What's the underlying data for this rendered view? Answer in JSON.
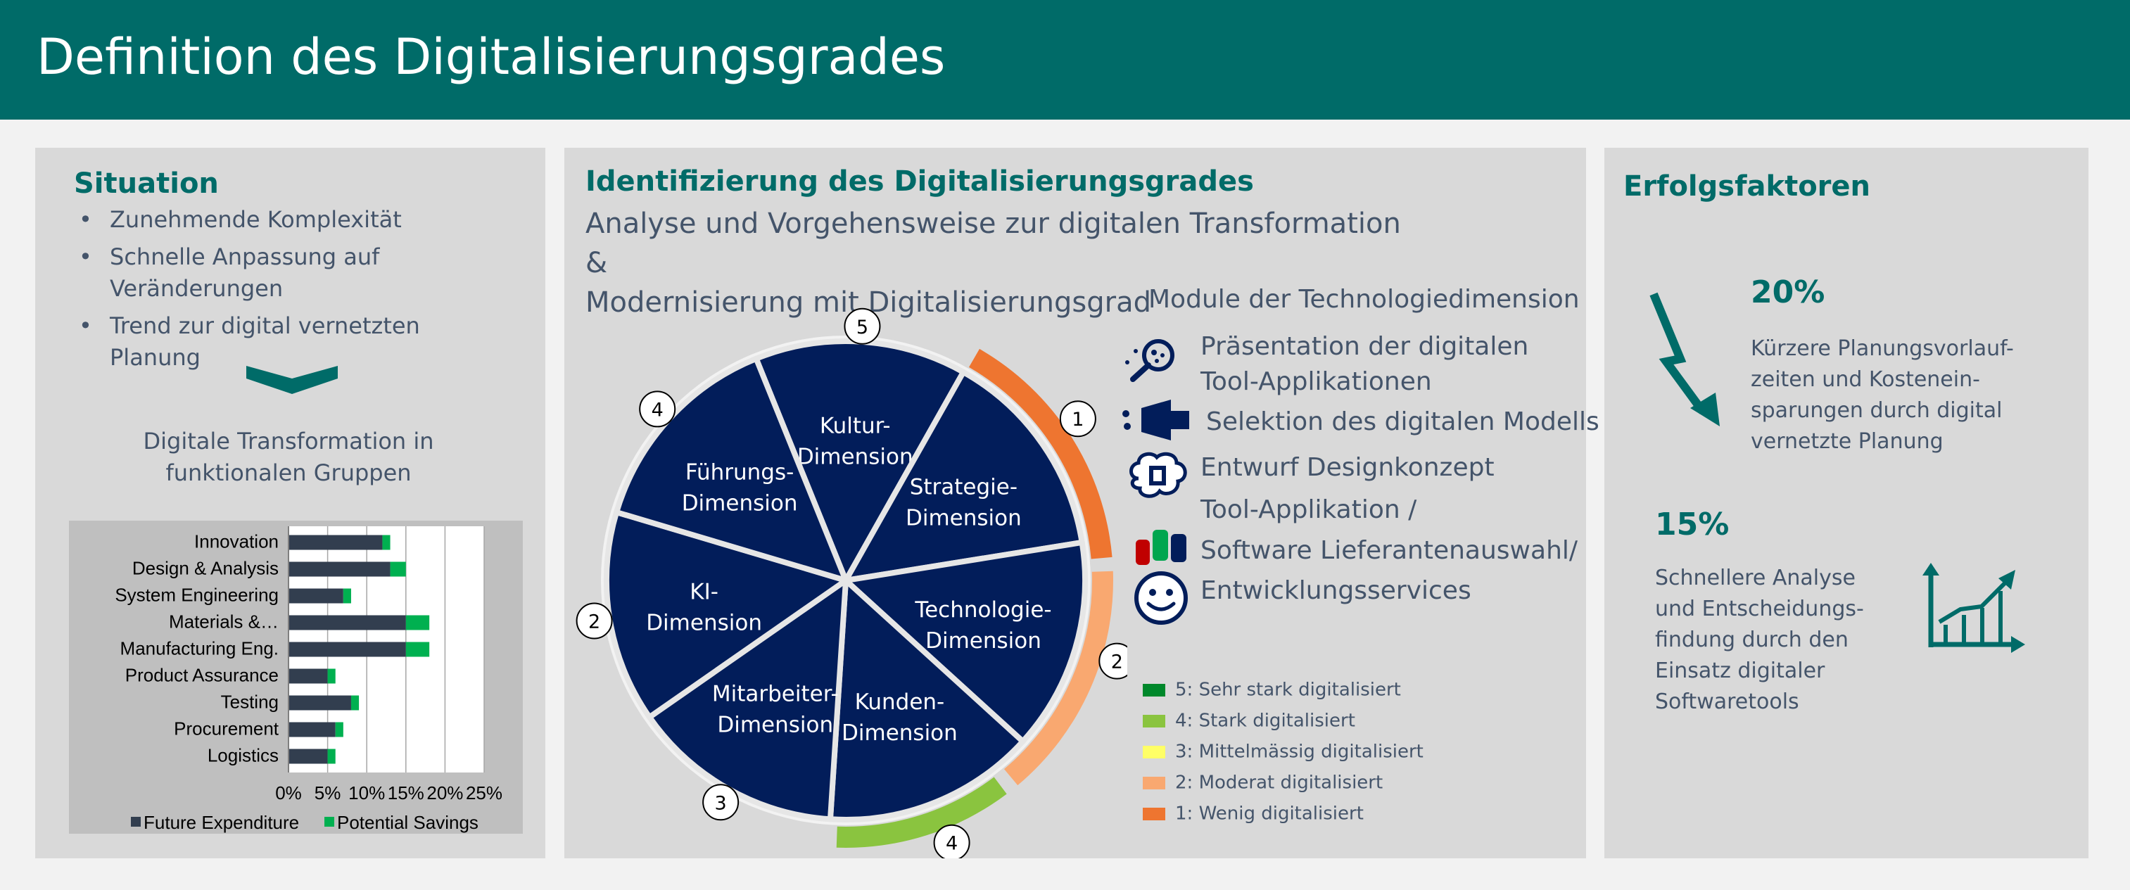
{
  "header": {
    "title": "Definition des Digitalisierungsgrades"
  },
  "situation": {
    "title": "Situation",
    "bullets": [
      "Zunehmende Komplexität",
      "Schnelle Anpassung auf Veränderungen",
      "Trend zur digital vernetzten Planung"
    ],
    "caption": "Digitale Transformation in funktionalen Gruppen"
  },
  "chart_data": {
    "type": "bar",
    "orientation": "horizontal",
    "stacked": true,
    "categories": [
      "Innovation",
      "Design & Analysis",
      "System Engineering",
      "Materials &…",
      "Manufacturing Eng.",
      "Product Assurance",
      "Testing",
      "Procurement",
      "Logistics"
    ],
    "series": [
      {
        "name": "Future Expenditure",
        "color": "#323e4f",
        "values": [
          12,
          13,
          7,
          15,
          15,
          5,
          8,
          6,
          5
        ]
      },
      {
        "name": "Potential Savings",
        "color": "#00b050",
        "values": [
          1,
          2,
          1,
          3,
          3,
          1,
          1,
          1,
          1
        ]
      }
    ],
    "xticks": [
      "0%",
      "5%",
      "10%",
      "15%",
      "20%",
      "25%"
    ],
    "xlim": [
      0,
      25
    ],
    "grid": true,
    "legend": "bottom"
  },
  "identification": {
    "title": "Identifizierung des Digitalisierungsgrades",
    "subtitle_line1": "Analyse und Vorgehensweise zur digitalen Transformation &",
    "subtitle_line2": "Modernisierung mit Digitalisierungsgrad",
    "segments": [
      {
        "line1": "Kultur-",
        "line2": "Dimension",
        "score": "5"
      },
      {
        "line1": "Strategie-",
        "line2": "Dimension",
        "score": "1"
      },
      {
        "line1": "Technologie-",
        "line2": "Dimension",
        "score": "2"
      },
      {
        "line1": "Kunden-",
        "line2": "Dimension",
        "score": "4"
      },
      {
        "line1": "Mitarbeiter-",
        "line2": "Dimension",
        "score": "3"
      },
      {
        "line1": "KI-",
        "line2": "Dimension",
        "score": "2"
      },
      {
        "line1": "Führungs-",
        "line2": "Dimension",
        "score": "4"
      }
    ],
    "modules_title": "Module der Technologiedimension",
    "modules": [
      {
        "line1": "Präsentation der digitalen",
        "line2": "Tool-Applikationen",
        "icon": "magnifier-icon"
      },
      {
        "line1": "Selektion des digitalen Modells",
        "icon": "projector-icon"
      },
      {
        "line1": "Entwurf Designkonzept",
        "icon": "brain-icon"
      },
      {
        "line1": "Tool-Applikation /",
        "line2": "Software Lieferantenauswahl/",
        "icon": "cylinders-icon"
      },
      {
        "line1": "Entwicklungsservices",
        "icon": "smiley-icon"
      }
    ],
    "legend": [
      {
        "label": "5:  Sehr stark digitalisiert",
        "color": "#00882b"
      },
      {
        "label": "4:  Stark digitalisiert",
        "color": "#8ac43f"
      },
      {
        "label": "3:  Mittelmässig digitalisiert",
        "color": "#ffff66"
      },
      {
        "label": "2:  Moderat digitalisiert",
        "color": "#f9a870"
      },
      {
        "label": "1:  Wenig digitalisiert",
        "color": "#ee7530"
      }
    ]
  },
  "success": {
    "title": "Erfolgsfaktoren",
    "stat1": {
      "value": "20%",
      "text": [
        "Kürzere Planungsvorlauf-",
        "zeiten und Kostenein-",
        "sparungen durch digital",
        "vernetzte Planung"
      ]
    },
    "stat2": {
      "value": "15%",
      "text": [
        "Schnellere Analyse",
        "und Entscheidungs-",
        "findung durch den",
        "Einsatz digitaler",
        "Softwaretools"
      ]
    }
  },
  "colors": {
    "brand": "#006b68",
    "panel": "#d9d9d9",
    "wheel": "#021d5a",
    "text": "#44546a"
  }
}
